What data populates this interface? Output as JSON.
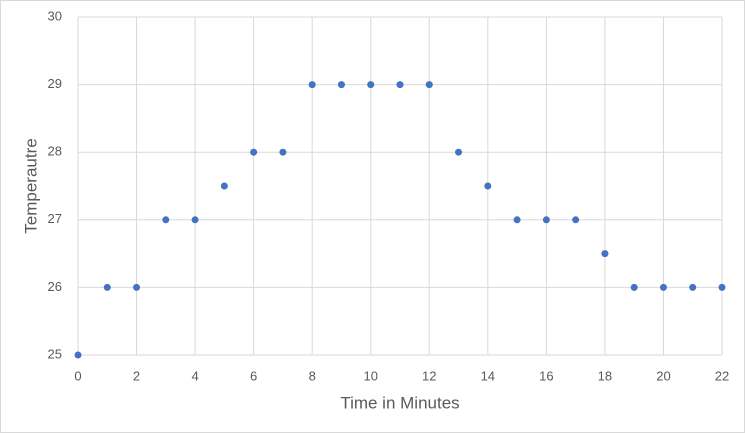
{
  "chart_data": {
    "type": "scatter",
    "x_label": "Time in Minutes",
    "y_label": "Temperautre",
    "x": [
      0,
      1,
      2,
      3,
      4,
      5,
      6,
      7,
      8,
      9,
      10,
      11,
      12,
      13,
      14,
      15,
      16,
      17,
      18,
      19,
      20,
      21,
      22
    ],
    "series": [
      {
        "color": "#4472c4",
        "values": [
          25,
          26,
          26,
          27,
          27,
          27.5,
          28,
          28,
          29,
          29,
          29,
          29,
          29,
          28,
          27.5,
          27,
          27,
          27,
          26.5,
          26,
          26,
          26,
          26
        ]
      }
    ],
    "xlim": [
      0,
      22
    ],
    "xticks": [
      0,
      2,
      4,
      6,
      8,
      10,
      12,
      14,
      16,
      18,
      20,
      22
    ],
    "ylim": [
      25,
      30
    ],
    "yticks": [
      25,
      26,
      27,
      28,
      29,
      30
    ],
    "grid": true
  }
}
